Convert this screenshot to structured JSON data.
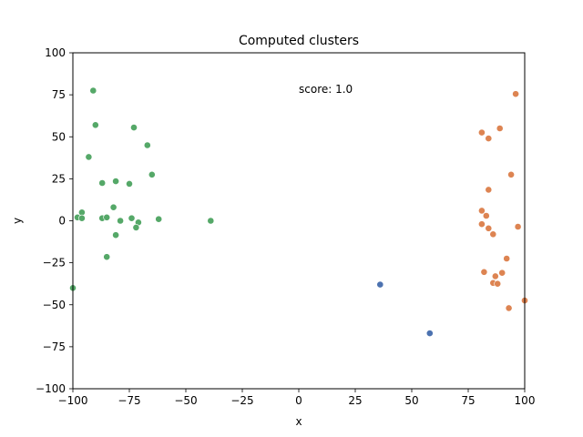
{
  "chart_data": {
    "type": "scatter",
    "title": "Computed clusters",
    "xlabel": "x",
    "ylabel": "y",
    "xlim": [
      -100,
      100
    ],
    "ylim": [
      -100,
      100
    ],
    "xticks": [
      -100,
      -75,
      -50,
      -25,
      0,
      25,
      50,
      75,
      100
    ],
    "yticks": [
      -100,
      -75,
      -50,
      -25,
      0,
      25,
      50,
      75,
      100
    ],
    "xtick_labels": [
      "−100",
      "−75",
      "−50",
      "−25",
      "0",
      "25",
      "50",
      "75",
      "100"
    ],
    "ytick_labels": [
      "−100",
      "−75",
      "−50",
      "−25",
      "0",
      "25",
      "50",
      "75",
      "100"
    ],
    "grid": false,
    "annotation": {
      "text": "score: 1.0",
      "x": 0,
      "y": 75
    },
    "series": [
      {
        "color": "#55a868",
        "points": [
          [
            -91,
            77.5
          ],
          [
            -90,
            57
          ],
          [
            -73,
            55.5
          ],
          [
            -67,
            45
          ],
          [
            -93,
            38
          ],
          [
            -65,
            27.5
          ],
          [
            -81,
            23.5
          ],
          [
            -87,
            22.5
          ],
          [
            -75,
            22
          ],
          [
            -82,
            8
          ],
          [
            -96,
            5
          ],
          [
            -98,
            2
          ],
          [
            -96,
            1.5
          ],
          [
            -87,
            1.5
          ],
          [
            -85,
            2
          ],
          [
            -74,
            1.5
          ],
          [
            -79,
            0
          ],
          [
            -71,
            -1
          ],
          [
            -62,
            1
          ],
          [
            -72,
            -4
          ],
          [
            -39,
            0
          ],
          [
            -81,
            -8.5
          ],
          [
            -85,
            -21.5
          ],
          [
            -100,
            -40
          ]
        ]
      },
      {
        "color": "#dd8452",
        "points": [
          [
            96,
            75.5
          ],
          [
            89,
            55
          ],
          [
            81,
            52.5
          ],
          [
            84,
            49
          ],
          [
            94,
            27.5
          ],
          [
            84,
            18.5
          ],
          [
            81,
            6
          ],
          [
            83,
            3
          ],
          [
            81,
            -2
          ],
          [
            84,
            -4.5
          ],
          [
            97,
            -3.5
          ],
          [
            86,
            -8
          ],
          [
            92,
            -22.5
          ],
          [
            82,
            -30.5
          ],
          [
            90,
            -31
          ],
          [
            87,
            -33
          ],
          [
            86,
            -37
          ],
          [
            88,
            -37.5
          ],
          [
            100,
            -47.5
          ],
          [
            93,
            -52
          ]
        ]
      },
      {
        "color": "#4c72b0",
        "points": [
          [
            36,
            -38
          ],
          [
            58,
            -67
          ]
        ]
      }
    ]
  }
}
